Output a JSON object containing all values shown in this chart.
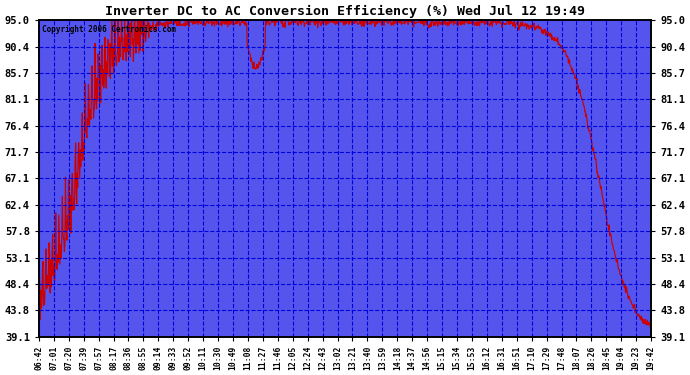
{
  "title": "Inverter DC to AC Conversion Efficiency (%) Wed Jul 12 19:49",
  "copyright": "Copyright 2006 Certronics.com",
  "plot_bg_color": "#4444ff",
  "line_color": "#cc0000",
  "y_ticks": [
    39.1,
    43.8,
    48.4,
    53.1,
    57.8,
    62.4,
    67.1,
    71.7,
    76.4,
    81.1,
    85.7,
    90.4,
    95.0
  ],
  "x_labels": [
    "06:42",
    "07:01",
    "07:20",
    "07:39",
    "07:57",
    "08:17",
    "08:36",
    "08:55",
    "09:14",
    "09:33",
    "09:52",
    "10:11",
    "10:30",
    "10:49",
    "11:08",
    "11:27",
    "11:46",
    "12:05",
    "12:24",
    "12:43",
    "13:02",
    "13:21",
    "13:40",
    "13:59",
    "14:18",
    "14:37",
    "14:56",
    "15:15",
    "15:34",
    "15:53",
    "16:12",
    "16:31",
    "16:51",
    "17:10",
    "17:29",
    "17:48",
    "18:07",
    "18:26",
    "18:45",
    "19:04",
    "19:23",
    "19:42"
  ],
  "ylim": [
    39.1,
    95.0
  ],
  "grid_color": "#0000ff",
  "figsize": [
    6.9,
    3.75
  ],
  "dpi": 100
}
